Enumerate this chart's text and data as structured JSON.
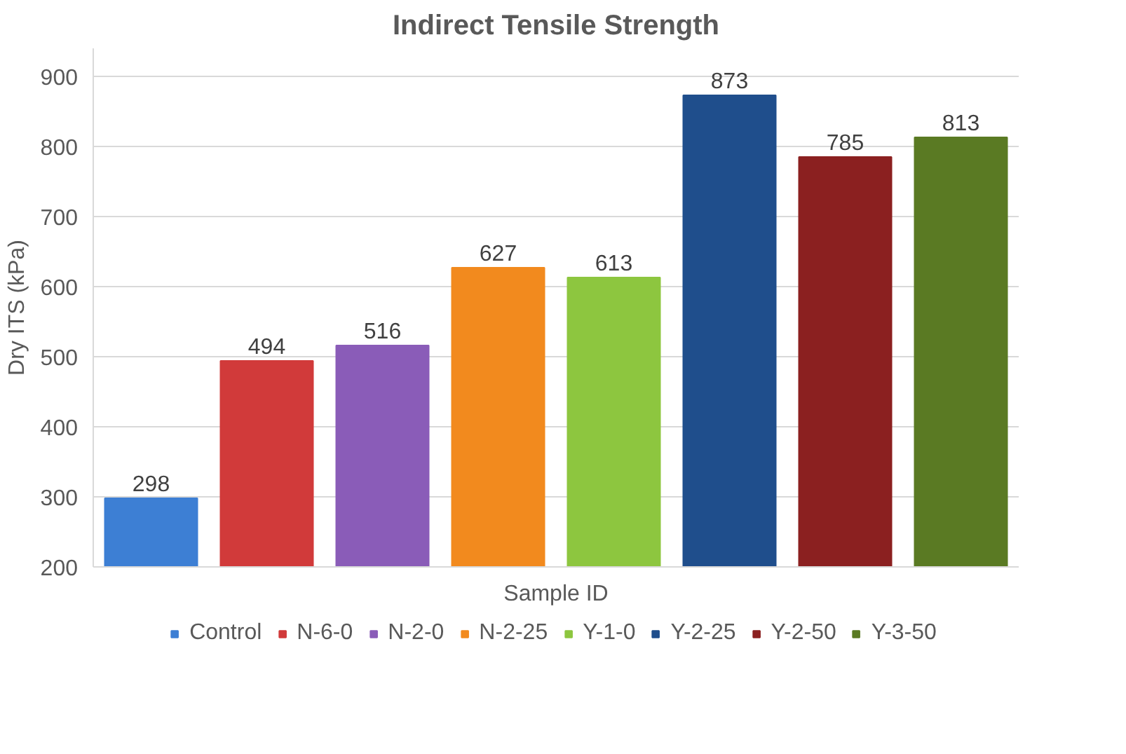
{
  "chart_data": {
    "type": "bar",
    "title": "Indirect Tensile Strength",
    "xlabel": "Sample ID",
    "ylabel": "Dry ITS (kPa)",
    "categories": [
      null,
      null,
      null,
      null,
      null,
      null,
      null,
      null
    ],
    "series": [
      {
        "name": "Control",
        "color": "#3d7fd4",
        "values": [
          298,
          null,
          null,
          null,
          null,
          null,
          null,
          null
        ]
      },
      {
        "name": "N-6-0",
        "color": "#d13a3a",
        "values": [
          null,
          494,
          null,
          null,
          null,
          null,
          null,
          null
        ]
      },
      {
        "name": "N-2-0",
        "color": "#8a5cb8",
        "values": [
          null,
          null,
          516,
          null,
          null,
          null,
          null,
          null
        ]
      },
      {
        "name": "N-2-25",
        "color": "#f28a1e",
        "values": [
          null,
          null,
          null,
          627,
          null,
          null,
          null,
          null
        ]
      },
      {
        "name": "Y-1-0",
        "color": "#8dc63f",
        "values": [
          null,
          null,
          null,
          null,
          613,
          null,
          null,
          null
        ]
      },
      {
        "name": "Y-2-25",
        "color": "#1f4e8c",
        "values": [
          null,
          null,
          null,
          null,
          null,
          873,
          null,
          null
        ]
      },
      {
        "name": "Y-2-50",
        "color": "#8b2020",
        "values": [
          null,
          null,
          null,
          null,
          null,
          null,
          785,
          null
        ]
      },
      {
        "name": "Y-3-50",
        "color": "#5a7a23",
        "values": [
          null,
          null,
          null,
          null,
          null,
          null,
          null,
          813
        ]
      }
    ],
    "ylim": [
      200,
      940
    ],
    "yticks": [
      200,
      300,
      400,
      500,
      600,
      700,
      800,
      900
    ],
    "grid": "y",
    "legend": "bottom",
    "data_labels": true
  }
}
